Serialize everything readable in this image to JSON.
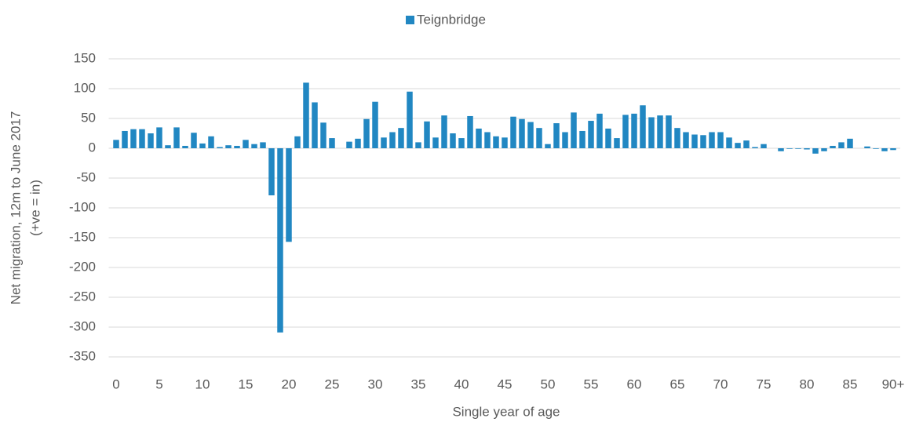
{
  "chart_data": {
    "type": "bar",
    "legend": "Teignbridge",
    "legend_position": "top",
    "x_label": "Single year of age",
    "y_label": [
      "Net migration, 12m to June 2017",
      "(+ve = in)"
    ],
    "color": "#2187c2",
    "categories": [
      "0",
      null,
      null,
      null,
      null,
      "5",
      null,
      null,
      null,
      null,
      "10",
      null,
      null,
      null,
      null,
      "15",
      null,
      null,
      null,
      null,
      "20",
      null,
      null,
      null,
      null,
      "25",
      null,
      null,
      null,
      null,
      "30",
      null,
      null,
      null,
      null,
      "35",
      null,
      null,
      null,
      null,
      "40",
      null,
      null,
      null,
      null,
      "45",
      null,
      null,
      null,
      null,
      "50",
      null,
      null,
      null,
      null,
      "55",
      null,
      null,
      null,
      null,
      "60",
      null,
      null,
      null,
      null,
      "65",
      null,
      null,
      null,
      null,
      "70",
      null,
      null,
      null,
      null,
      "75",
      null,
      null,
      null,
      null,
      "80",
      null,
      null,
      null,
      null,
      "85",
      null,
      null,
      null,
      null,
      "90+"
    ],
    "values": [
      14,
      29,
      32,
      32,
      25,
      35,
      5,
      35,
      4,
      26,
      8,
      20,
      2,
      5,
      4,
      14,
      7,
      10,
      -79,
      -309,
      -157,
      20,
      110,
      77,
      43,
      17,
      0,
      11,
      16,
      49,
      78,
      18,
      27,
      34,
      95,
      10,
      45,
      18,
      55,
      25,
      17,
      54,
      33,
      27,
      20,
      18,
      53,
      49,
      44,
      34,
      7,
      42,
      27,
      60,
      29,
      46,
      58,
      33,
      17,
      56,
      58,
      72,
      52,
      55,
      55,
      34,
      27,
      23,
      22,
      27,
      27,
      18,
      9,
      13,
      2,
      7,
      0,
      -5,
      -1,
      -1,
      -2,
      -9,
      -5,
      4,
      10,
      16,
      0,
      3,
      -1,
      -5,
      -3
    ],
    "ylim": [
      -350,
      150
    ],
    "yticks": [
      -350,
      -300,
      -250,
      -200,
      -150,
      -100,
      -50,
      0,
      50,
      100,
      150
    ],
    "grid": true
  }
}
